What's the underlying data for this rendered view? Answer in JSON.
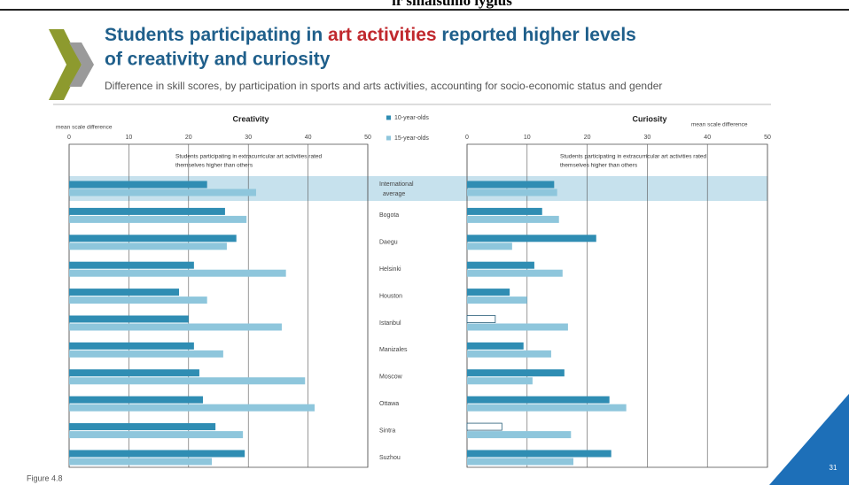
{
  "page_top": "ir smalsumo lygius",
  "title_parts": [
    "Students participating in ",
    "art activities",
    " reported higher levels",
    "of creativity and curiosity"
  ],
  "subtitle": "Difference in skill scores, by participation in sports and arts activities, accounting for socio-economic status and gender",
  "figure_label": "Figure 4.8",
  "page_number": "31",
  "chart_data": {
    "type": "bar",
    "orientation": "horizontal",
    "categories": [
      "International average",
      "Bogota",
      "Daegu",
      "Helsinki",
      "Houston",
      "Istanbul",
      "Manizales",
      "Moscow",
      "Ottawa",
      "Sintra",
      "Suzhou"
    ],
    "highlight": [
      0
    ],
    "grid": true,
    "panels": [
      {
        "title": "Creativity",
        "xlabel": "mean scale difference",
        "xlim": [
          0,
          50
        ],
        "xticks": [
          0,
          10,
          20,
          30,
          40,
          50
        ],
        "annotation": [
          "Students participating in extracurricular art activities rated",
          "themselves higher than others"
        ],
        "series": [
          {
            "name": "10-year-olds",
            "color": "#2f8db3",
            "values": [
              23.1,
              26.1,
              28.0,
              20.9,
              18.4,
              20.0,
              20.9,
              21.8,
              22.4,
              24.5,
              29.4
            ]
          },
          {
            "name": "15-year-olds",
            "color": "#8ec6dc",
            "values": [
              31.3,
              29.7,
              26.4,
              36.3,
              23.1,
              35.6,
              25.8,
              39.5,
              41.1,
              29.1,
              23.9
            ]
          }
        ]
      },
      {
        "title": "Curiosity",
        "xlabel": "mean scale difference",
        "xlim": [
          0,
          50
        ],
        "xticks": [
          0,
          10,
          20,
          30,
          40,
          50
        ],
        "annotation": [
          "Students participating in extracurricular art activities rated",
          "themselves higher than others"
        ],
        "series": [
          {
            "name": "10-year-olds",
            "color": "#2f8db3",
            "hollow": [
              5,
              9
            ],
            "values": [
              14.5,
              12.5,
              21.5,
              11.2,
              7.1,
              4.7,
              9.4,
              16.2,
              23.7,
              5.8,
              24.0
            ]
          },
          {
            "name": "15-year-olds",
            "color": "#8ec6dc",
            "values": [
              15.0,
              15.3,
              7.5,
              15.9,
              10.0,
              16.8,
              14.0,
              10.9,
              26.5,
              17.3,
              17.7
            ]
          }
        ]
      }
    ]
  }
}
